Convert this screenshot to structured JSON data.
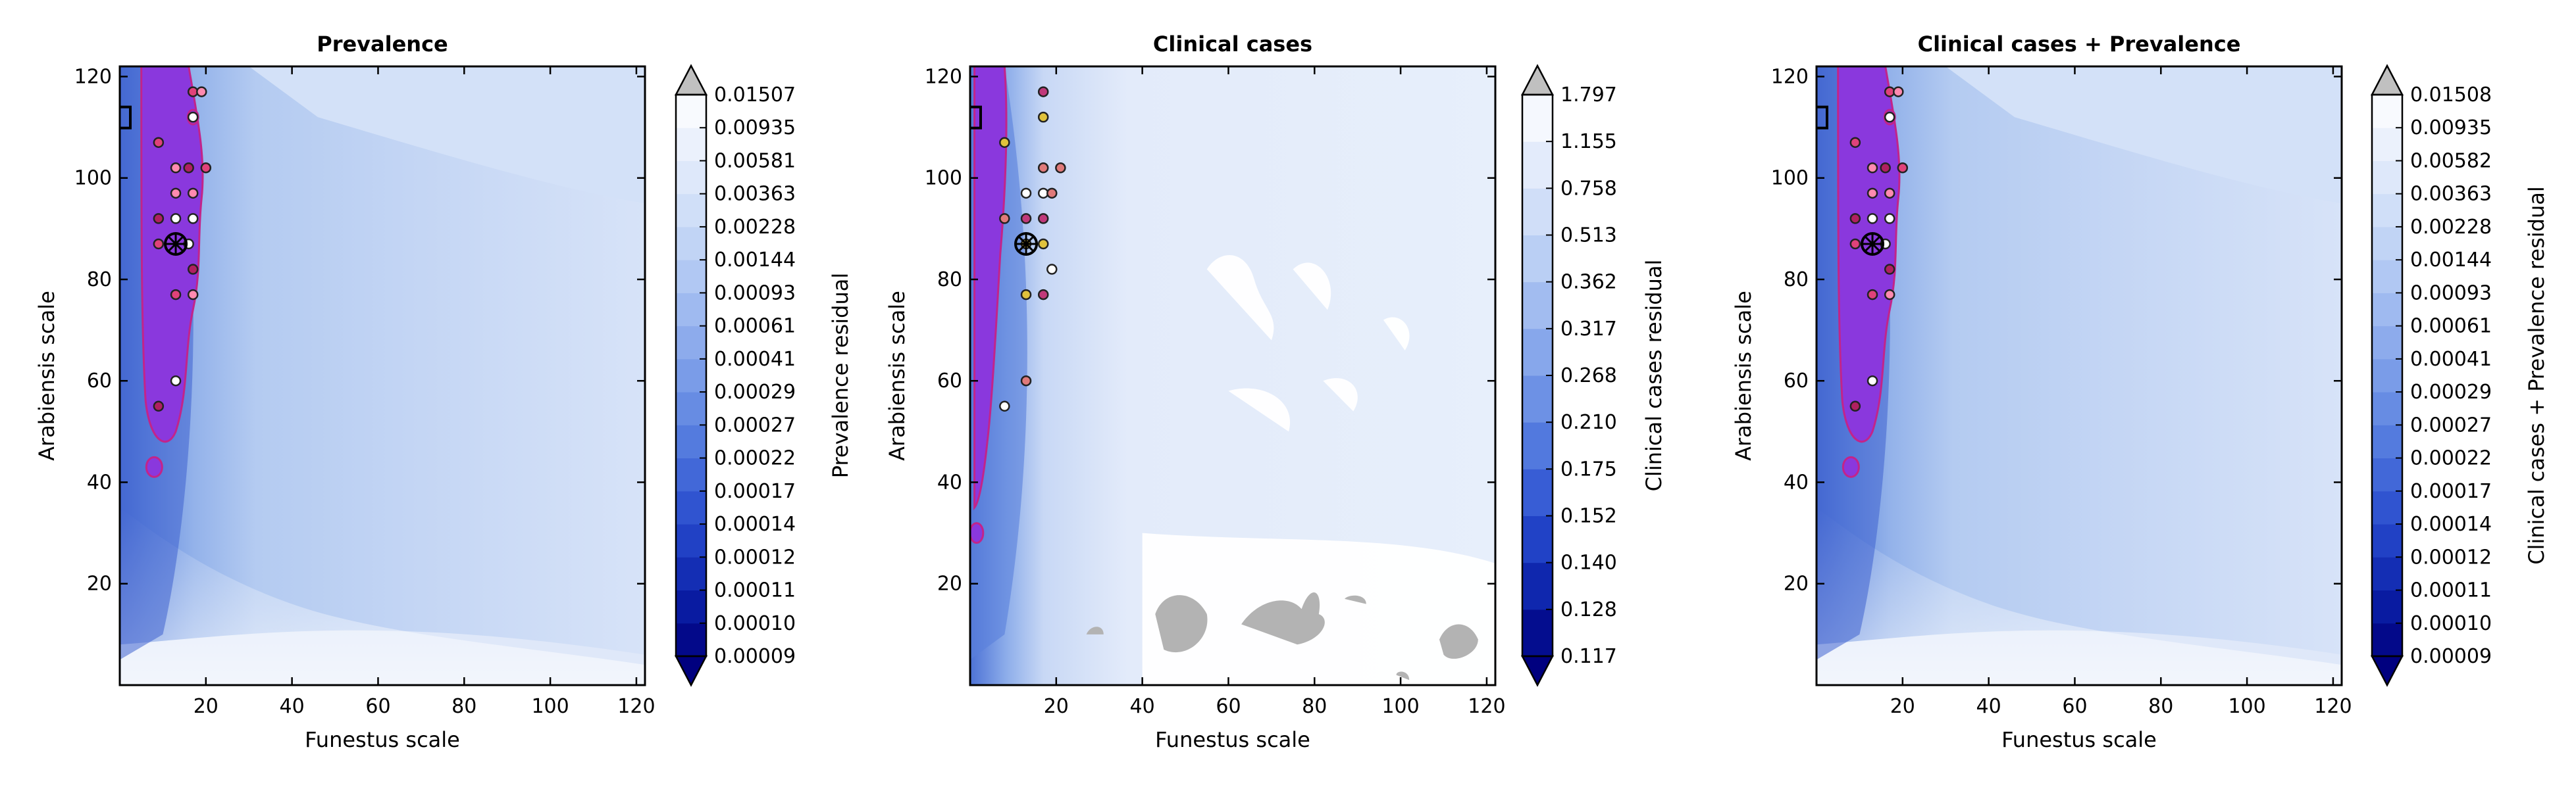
{
  "chart_data": [
    {
      "type": "contour",
      "title": "Prevalence",
      "xlabel": "Funestus scale",
      "ylabel": "Arabiensis scale",
      "xlim": [
        0,
        122
      ],
      "ylim": [
        0,
        122
      ],
      "xticks": [
        20,
        40,
        60,
        80,
        100,
        120
      ],
      "yticks": [
        20,
        40,
        60,
        80,
        100,
        120
      ],
      "colorbar_label": "Prevalence residual",
      "colorbar_levels": [
        "0.00009",
        "0.00010",
        "0.00011",
        "0.00012",
        "0.00014",
        "0.00017",
        "0.00022",
        "0.00027",
        "0.00029",
        "0.00041",
        "0.00061",
        "0.00093",
        "0.00144",
        "0.00228",
        "0.00363",
        "0.00581",
        "0.00935",
        "0.01507"
      ],
      "best_fit_marker": [
        13,
        87
      ],
      "points": [
        {
          "x": 9,
          "y": 107
        },
        {
          "x": 13,
          "y": 97
        },
        {
          "x": 13,
          "y": 92
        },
        {
          "x": 9,
          "y": 92
        },
        {
          "x": 9,
          "y": 87
        },
        {
          "x": 17,
          "y": 97
        },
        {
          "x": 17,
          "y": 92
        },
        {
          "x": 17,
          "y": 82
        },
        {
          "x": 13,
          "y": 77
        },
        {
          "x": 17,
          "y": 77
        },
        {
          "x": 13,
          "y": 60
        },
        {
          "x": 9,
          "y": 55
        },
        {
          "x": 17,
          "y": 117
        },
        {
          "x": 19,
          "y": 117
        },
        {
          "x": 17,
          "y": 112
        },
        {
          "x": 16,
          "y": 102
        },
        {
          "x": 20,
          "y": 102
        },
        {
          "x": 13,
          "y": 102
        },
        {
          "x": 16,
          "y": 87
        }
      ]
    },
    {
      "type": "contour",
      "title": "Clinical cases",
      "xlabel": "Funestus scale",
      "ylabel": "Arabiensis scale",
      "xlim": [
        0,
        122
      ],
      "ylim": [
        0,
        122
      ],
      "xticks": [
        20,
        40,
        60,
        80,
        100,
        120
      ],
      "yticks": [
        20,
        40,
        60,
        80,
        100,
        120
      ],
      "colorbar_label": "Clinical cases residual",
      "colorbar_levels": [
        "0.117",
        "0.128",
        "0.140",
        "0.152",
        "0.175",
        "0.210",
        "0.268",
        "0.317",
        "0.362",
        "0.513",
        "0.758",
        "1.155",
        "1.797"
      ],
      "best_fit_marker": [
        13,
        87
      ],
      "points": [
        {
          "x": 8,
          "y": 107
        },
        {
          "x": 8,
          "y": 92
        },
        {
          "x": 13,
          "y": 97
        },
        {
          "x": 13,
          "y": 92
        },
        {
          "x": 13,
          "y": 87
        },
        {
          "x": 17,
          "y": 102
        },
        {
          "x": 17,
          "y": 97
        },
        {
          "x": 17,
          "y": 92
        },
        {
          "x": 17,
          "y": 87
        },
        {
          "x": 21,
          "y": 102
        },
        {
          "x": 19,
          "y": 82
        },
        {
          "x": 17,
          "y": 77
        },
        {
          "x": 13,
          "y": 77
        },
        {
          "x": 13,
          "y": 60
        },
        {
          "x": 8,
          "y": 55
        },
        {
          "x": 17,
          "y": 117
        },
        {
          "x": 17,
          "y": 112
        },
        {
          "x": 19,
          "y": 97
        }
      ]
    },
    {
      "type": "contour",
      "title": "Clinical cases + Prevalence",
      "xlabel": "Funestus scale",
      "ylabel": "Arabiensis scale",
      "xlim": [
        0,
        122
      ],
      "ylim": [
        0,
        122
      ],
      "xticks": [
        20,
        40,
        60,
        80,
        100,
        120
      ],
      "yticks": [
        20,
        40,
        60,
        80,
        100,
        120
      ],
      "colorbar_label": "Clinical cases + Prevalence residual",
      "colorbar_levels": [
        "0.00009",
        "0.00010",
        "0.00011",
        "0.00012",
        "0.00014",
        "0.00017",
        "0.00022",
        "0.00027",
        "0.00029",
        "0.00041",
        "0.00061",
        "0.00093",
        "0.00144",
        "0.00228",
        "0.00363",
        "0.00582",
        "0.00935",
        "0.01508"
      ],
      "best_fit_marker": [
        13,
        87
      ],
      "points": [
        {
          "x": 9,
          "y": 107
        },
        {
          "x": 13,
          "y": 97
        },
        {
          "x": 13,
          "y": 92
        },
        {
          "x": 9,
          "y": 92
        },
        {
          "x": 9,
          "y": 87
        },
        {
          "x": 17,
          "y": 97
        },
        {
          "x": 17,
          "y": 92
        },
        {
          "x": 17,
          "y": 82
        },
        {
          "x": 13,
          "y": 77
        },
        {
          "x": 17,
          "y": 77
        },
        {
          "x": 13,
          "y": 60
        },
        {
          "x": 9,
          "y": 55
        },
        {
          "x": 17,
          "y": 117
        },
        {
          "x": 19,
          "y": 117
        },
        {
          "x": 17,
          "y": 112
        },
        {
          "x": 16,
          "y": 102
        },
        {
          "x": 20,
          "y": 102
        },
        {
          "x": 13,
          "y": 102
        },
        {
          "x": 16,
          "y": 87
        }
      ]
    }
  ],
  "colors": {
    "band_light": "#e7effb",
    "band_mid": "#b7cdf1",
    "band_dark": "#6f95e2",
    "band_darkest": "#3e63cf",
    "valley": "#8a38dd",
    "valley_edge": "#c2248a",
    "gray_patch": "#b3b3b3",
    "cbar_top": "#ffffff",
    "cbar_bottom": "#00007f",
    "extend_top": "#c0c0c0"
  }
}
